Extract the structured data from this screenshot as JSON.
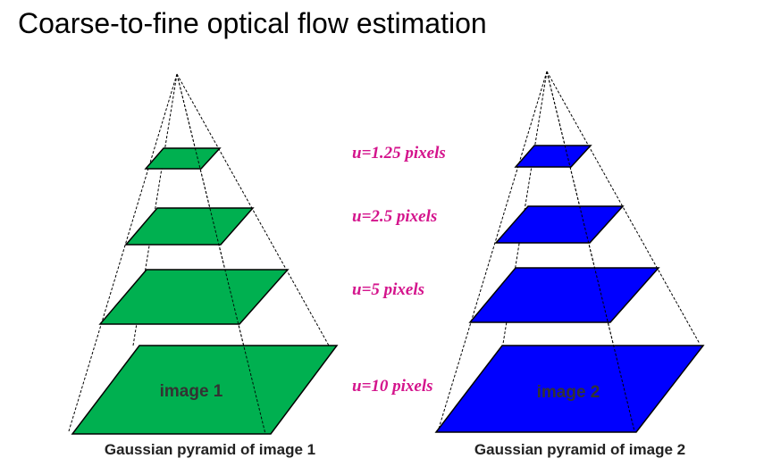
{
  "title": "Coarse-to-fine optical flow estimation",
  "colors": {
    "pyramid1": "#00b050",
    "pyramid2": "#0000ff",
    "label": "#d4148c"
  },
  "levels": [
    {
      "label": "u=1.25 pixels"
    },
    {
      "label": "u=2.5 pixels"
    },
    {
      "label": "u=5 pixels"
    },
    {
      "label": "u=10 pixels"
    }
  ],
  "pyramids": [
    {
      "image_label": "image 1",
      "caption": "Gaussian pyramid of image 1"
    },
    {
      "image_label": "image 2",
      "caption": "Gaussian pyramid of image 2"
    }
  ]
}
